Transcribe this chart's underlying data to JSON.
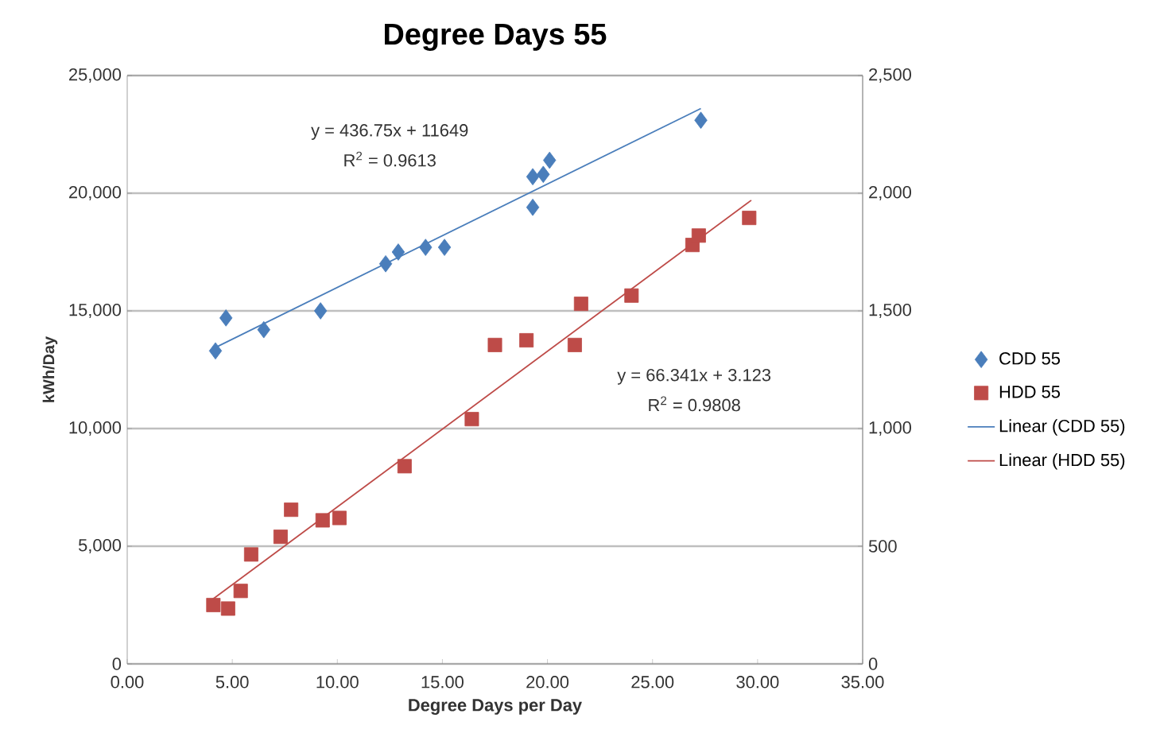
{
  "chart_data": {
    "type": "scatter",
    "title": "Degree Days 55",
    "xlabel": "Degree Days per Day",
    "ylabel": "kWh/Day",
    "xlim": [
      0,
      35
    ],
    "xticks": [
      {
        "value": 0,
        "label": "0.00"
      },
      {
        "value": 5,
        "label": "5.00"
      },
      {
        "value": 10,
        "label": "10.00"
      },
      {
        "value": 15,
        "label": "15.00"
      },
      {
        "value": 20,
        "label": "20.00"
      },
      {
        "value": 25,
        "label": "25.00"
      },
      {
        "value": 30,
        "label": "30.00"
      },
      {
        "value": 35,
        "label": "35.00"
      }
    ],
    "ylim": [
      0,
      25000
    ],
    "yticks": [
      0,
      {
        "value": 5000,
        "label": "5,000"
      },
      {
        "value": 10000,
        "label": "10,000"
      },
      {
        "value": 15000,
        "label": "15,000"
      },
      {
        "value": 20000,
        "label": "20,000"
      },
      {
        "value": 25000,
        "label": "25,000"
      }
    ],
    "y2lim": [
      0,
      2500
    ],
    "y2ticks": [
      0,
      500,
      {
        "value": 1000,
        "label": "1,000"
      },
      {
        "value": 1500,
        "label": "1,500"
      },
      {
        "value": 2000,
        "label": "2,000"
      },
      {
        "value": 2500,
        "label": "2,500"
      }
    ],
    "grid": "y",
    "legend": "right",
    "series": [
      {
        "name": "CDD 55",
        "marker": "diamond",
        "color": "#4a7ebb",
        "x": [
          4.2,
          4.7,
          6.5,
          9.2,
          12.3,
          12.9,
          14.2,
          15.1,
          19.3,
          19.8,
          20.1,
          19.3,
          27.3
        ],
        "values": [
          13300,
          14700,
          14200,
          15000,
          17000,
          17500,
          17700,
          17700,
          20700,
          20800,
          21400,
          19400,
          23100
        ]
      },
      {
        "name": "HDD 55",
        "marker": "square",
        "axis": "y2",
        "color": "#be4b48",
        "x": [
          4.1,
          4.8,
          5.4,
          5.9,
          7.3,
          7.8,
          9.3,
          10.1,
          13.2,
          16.4,
          17.5,
          19.0,
          21.3,
          21.6,
          24.0,
          26.9,
          27.2,
          29.6
        ],
        "values": [
          250,
          235,
          310,
          465,
          540,
          655,
          610,
          620,
          840,
          1040,
          1355,
          1375,
          1355,
          1530,
          1565,
          1780,
          1820,
          1895
        ]
      },
      {
        "name": "Linear (CDD 55)",
        "type": "line",
        "marker": "none",
        "line_style": "solid",
        "color": "#4a7ebb",
        "x": [
          4.1,
          27.3
        ],
        "values": [
          13400,
          23600
        ]
      },
      {
        "name": "Linear (HDD 55)",
        "type": "line",
        "marker": "none",
        "line_style": "solid",
        "axis": "y2",
        "color": "#be4b48",
        "x": [
          4.0,
          29.7
        ],
        "values": [
          270,
          1970
        ]
      }
    ],
    "annotations": [
      "y = 436.75x + 11649",
      "R$^{2}$ = 0.9613",
      "y = 66.341x + 3.123",
      "R$^{2}$ = 0.9808"
    ]
  }
}
